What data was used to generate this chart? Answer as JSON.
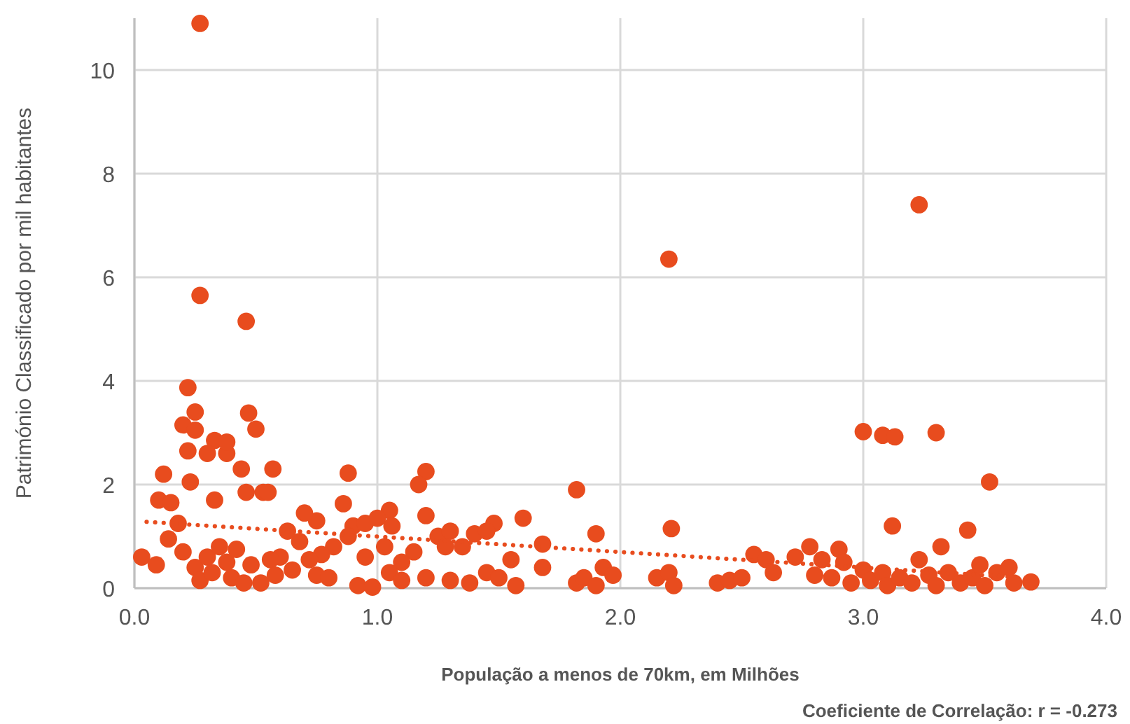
{
  "chart_data": {
    "type": "scatter",
    "xlabel": "População a menos de 70km, em Milhões",
    "ylabel": "Património Classificado por mil habitantes",
    "annotations": [
      "Coeficiente de Correlação: r = -0.273"
    ],
    "xlim": [
      0,
      4
    ],
    "xticks": [
      {
        "value": 0,
        "label": "0.0"
      },
      {
        "value": 1,
        "label": "1.0"
      },
      {
        "value": 2,
        "label": "2.0"
      },
      {
        "value": 3,
        "label": "3.0"
      },
      {
        "value": 4,
        "label": "4.0"
      }
    ],
    "ylim": [
      0,
      11
    ],
    "yticks": [
      0,
      2,
      4,
      6,
      8,
      10
    ],
    "grid": true,
    "marker": "circle",
    "series": [
      {
        "color": "#e84c1e",
        "x": [
          0.27,
          0.27,
          0.46,
          2.2,
          3.23,
          0.22,
          0.25,
          0.47,
          0.5,
          0.2,
          0.25,
          0.33,
          0.38,
          0.38,
          0.44,
          0.57,
          0.3,
          0.22,
          0.12,
          0.88,
          1.2,
          1.17,
          0.23,
          0.46,
          0.53,
          0.55,
          0.33,
          0.1,
          0.15,
          0.86,
          1.05,
          1.6,
          1.48,
          1.82,
          2.21,
          1.9,
          3.0,
          3.08,
          3.13,
          3.3,
          3.52,
          3.12,
          3.43,
          2.78,
          2.9,
          3.32,
          0.75,
          0.7,
          0.9,
          0.95,
          1.0,
          1.06,
          1.2,
          1.25,
          1.3,
          1.4,
          1.45,
          1.68,
          1.68,
          1.55,
          1.35,
          1.28,
          1.15,
          1.1,
          1.03,
          0.95,
          0.88,
          0.82,
          0.77,
          0.72,
          0.68,
          0.63,
          0.6,
          0.03,
          0.09,
          0.14,
          0.18,
          0.2,
          0.25,
          0.27,
          0.3,
          0.32,
          0.35,
          0.38,
          0.4,
          0.42,
          0.45,
          0.48,
          0.52,
          0.56,
          0.58,
          0.65,
          0.75,
          0.8,
          0.92,
          0.98,
          1.05,
          1.1,
          1.2,
          1.3,
          1.38,
          1.45,
          1.5,
          1.57,
          1.82,
          1.85,
          1.9,
          1.93,
          1.97,
          2.15,
          2.2,
          2.22,
          2.4,
          2.45,
          2.5,
          2.55,
          2.6,
          2.63,
          2.72,
          2.8,
          2.83,
          2.87,
          2.92,
          2.95,
          3.0,
          3.03,
          3.08,
          3.1,
          3.15,
          3.2,
          3.23,
          3.27,
          3.3,
          3.35,
          3.4,
          3.45,
          3.48,
          3.5,
          3.55,
          3.6,
          3.62,
          3.69
        ],
        "values": [
          10.9,
          5.65,
          5.15,
          6.35,
          7.4,
          3.87,
          3.4,
          3.38,
          3.07,
          3.15,
          3.05,
          2.85,
          2.6,
          2.82,
          2.3,
          2.3,
          2.6,
          2.65,
          2.2,
          2.22,
          2.25,
          2.0,
          2.05,
          1.85,
          1.85,
          1.85,
          1.7,
          1.7,
          1.65,
          1.63,
          1.5,
          1.35,
          1.25,
          1.9,
          1.15,
          1.05,
          3.02,
          2.95,
          2.92,
          3.0,
          2.05,
          1.2,
          1.12,
          0.8,
          0.75,
          0.8,
          1.3,
          1.45,
          1.2,
          1.25,
          1.35,
          1.2,
          1.4,
          1.0,
          1.1,
          1.05,
          1.1,
          0.85,
          0.4,
          0.55,
          0.8,
          0.8,
          0.7,
          0.5,
          0.8,
          0.6,
          1.0,
          0.8,
          0.65,
          0.55,
          0.9,
          1.1,
          0.6,
          0.6,
          0.45,
          0.95,
          1.25,
          0.7,
          0.4,
          0.15,
          0.6,
          0.3,
          0.8,
          0.5,
          0.2,
          0.75,
          0.1,
          0.45,
          0.1,
          0.55,
          0.25,
          0.35,
          0.25,
          0.2,
          0.05,
          0.02,
          0.3,
          0.15,
          0.2,
          0.15,
          0.1,
          0.3,
          0.2,
          0.05,
          0.1,
          0.2,
          0.05,
          0.4,
          0.25,
          0.2,
          0.3,
          0.05,
          0.1,
          0.15,
          0.2,
          0.65,
          0.55,
          0.3,
          0.6,
          0.25,
          0.55,
          0.2,
          0.5,
          0.1,
          0.35,
          0.15,
          0.3,
          0.05,
          0.2,
          0.1,
          0.55,
          0.25,
          0.05,
          0.3,
          0.1,
          0.2,
          0.45,
          0.05,
          0.3,
          0.4,
          0.1,
          0.12
        ]
      },
      {
        "type": "line",
        "color": "#e84c1e",
        "line_style": "dotted",
        "marker": "none",
        "x": [
          0.05,
          3.6
        ],
        "values": [
          1.28,
          0.22
        ]
      }
    ]
  }
}
